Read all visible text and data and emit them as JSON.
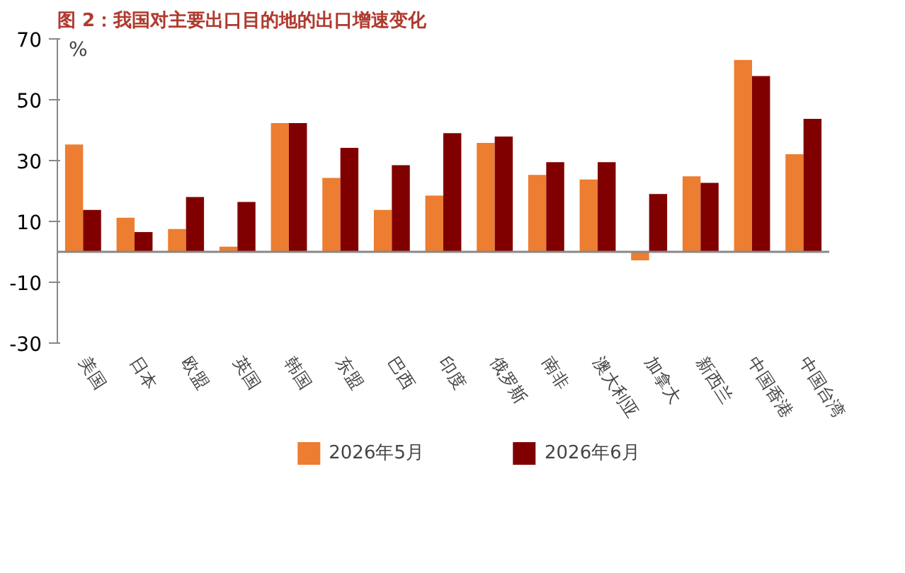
{
  "chart_data": {
    "type": "bar",
    "title": "图 2：我国对主要出口目的地的出口增速变化",
    "ylabel": "%",
    "categories": [
      "美国",
      "日本",
      "欧盟",
      "英国",
      "韩国",
      "东盟",
      "巴西",
      "印度",
      "俄罗斯",
      "南非",
      "澳大利亚",
      "加拿大",
      "新西兰",
      "中国香港",
      "中国台湾"
    ],
    "series": [
      {
        "name": "2026年5月",
        "color": "#ed7d31",
        "values": [
          35.3,
          11.2,
          7.5,
          1.7,
          42.3,
          24.3,
          13.8,
          18.5,
          35.8,
          25.3,
          23.8,
          -2.8,
          24.8,
          63.1,
          32.1
        ]
      },
      {
        "name": "2026年6月",
        "color": "#800000",
        "values": [
          13.8,
          6.5,
          18.0,
          16.4,
          42.3,
          34.2,
          28.5,
          39.0,
          37.9,
          29.5,
          29.5,
          19.0,
          22.7,
          57.8,
          43.7
        ]
      }
    ],
    "ylim": [
      -30,
      70
    ],
    "yticks": [
      -30,
      -10,
      10,
      30,
      50,
      70
    ],
    "grid": false,
    "legend": "bottom"
  }
}
